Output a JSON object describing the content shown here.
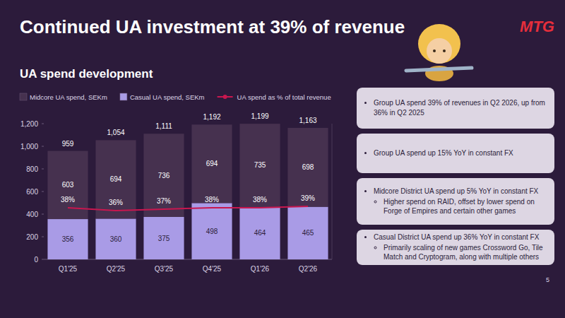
{
  "title": "Continued UA investment at 39% of revenue",
  "logo": "MTG",
  "page_number": 5,
  "notes": [
    {
      "text": "Group UA spend 39% of revenues in Q2 2026, up from 36% in Q2 2025"
    },
    {
      "text": "Group UA spend up 15% YoY in constant FX"
    },
    {
      "text": "Midcore District UA spend up 5% YoY in constant FX",
      "subpoints": [
        "Higher spend on RAID, offset by lower spend on Forge of Empires and certain other games"
      ]
    },
    {
      "text": "Casual District UA spend up 36% YoY in constant FX",
      "subpoints": [
        "Primarily scaling of new games Crossword Go, Tile Match and Cryptogram, along with multiple others"
      ]
    }
  ],
  "chart_data": {
    "type": "bar",
    "title": "UA spend development",
    "stacked": true,
    "data_labels": true,
    "legend": "top",
    "grid": false,
    "categories": [
      "Q1'25",
      "Q2'25",
      "Q3'25",
      "Q4'25",
      "Q1'26",
      "Q2'26"
    ],
    "ylim": [
      0,
      1200
    ],
    "yticks": [
      0,
      200,
      400,
      600,
      800,
      {
        "value": 1000,
        "label": "1,000"
      },
      {
        "value": 1200,
        "label": "1,200"
      }
    ],
    "y2lim": [
      0,
      100
    ],
    "y2ticks": [],
    "series": [
      {
        "name": "Midcore UA spend, SEKm",
        "color": "#46314f",
        "values": [
          603,
          694,
          736,
          694,
          735,
          698
        ]
      },
      {
        "name": "Casual UA spend, SEKm",
        "color": "#a99be6",
        "values": [
          356,
          360,
          375,
          498,
          464,
          465
        ]
      },
      {
        "name": "UA spend as % of total revenue",
        "type": "line",
        "axis": "y2",
        "color": "#c8174f",
        "line_style": "solid",
        "values": [
          38,
          36,
          37,
          38,
          38,
          39
        ],
        "value_labels": [
          "38%",
          "36%",
          "37%",
          "38%",
          "38%",
          "39%"
        ]
      }
    ],
    "totals": [
      959,
      1054,
      1111,
      1192,
      1199,
      1163
    ],
    "total_labels": [
      "959",
      "1,054",
      "1,111",
      "1,192",
      "1,199",
      "1,163"
    ]
  }
}
